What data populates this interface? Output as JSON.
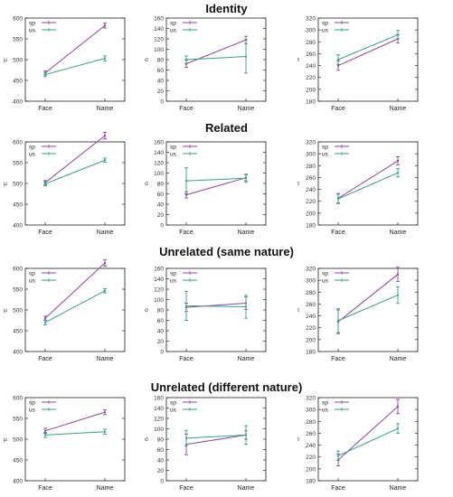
{
  "colors": {
    "sp": "#9b3fa8",
    "us": "#2aa68a",
    "axis": "#222222",
    "grid": "#e6e6e6"
  },
  "rows": [
    {
      "title": "Identity"
    },
    {
      "title": "Related"
    },
    {
      "title": "Unrelated (same nature)"
    },
    {
      "title": "Unrelated (different nature)"
    }
  ],
  "chart_data": [
    {
      "type": "line",
      "row": 0,
      "col": 0,
      "ylabel": "μ",
      "categories": [
        "Face",
        "Name"
      ],
      "ylim": [
        400,
        600
      ],
      "yticks": [
        400,
        450,
        500,
        550,
        600
      ],
      "legend": "top-left",
      "series": [
        {
          "name": "sp",
          "values": [
            468,
            582
          ],
          "errors": [
            5,
            6
          ]
        },
        {
          "name": "us",
          "values": [
            464,
            503
          ],
          "errors": [
            5,
            6
          ]
        }
      ]
    },
    {
      "type": "line",
      "row": 0,
      "col": 1,
      "ylabel": "σ",
      "categories": [
        "Face",
        "Name"
      ],
      "ylim": [
        0,
        160
      ],
      "yticks": [
        0,
        20,
        40,
        60,
        80,
        100,
        120,
        140,
        160
      ],
      "legend": "top-left",
      "series": [
        {
          "name": "sp",
          "values": [
            72,
            118
          ],
          "errors": [
            7,
            7
          ]
        },
        {
          "name": "us",
          "values": [
            80,
            86
          ],
          "errors": [
            7,
            32
          ]
        }
      ]
    },
    {
      "type": "line",
      "row": 0,
      "col": 2,
      "ylabel": "τ",
      "categories": [
        "Face",
        "Name"
      ],
      "ylim": [
        180,
        320
      ],
      "yticks": [
        180,
        200,
        220,
        240,
        260,
        280,
        300,
        320
      ],
      "legend": "top-left",
      "series": [
        {
          "name": "sp",
          "values": [
            240,
            285
          ],
          "errors": [
            8,
            7
          ]
        },
        {
          "name": "us",
          "values": [
            250,
            292
          ],
          "errors": [
            8,
            7
          ]
        }
      ]
    },
    {
      "type": "line",
      "row": 1,
      "col": 0,
      "ylabel": "μ",
      "categories": [
        "Face",
        "Name"
      ],
      "ylim": [
        400,
        600
      ],
      "yticks": [
        400,
        450,
        500,
        550,
        600
      ],
      "legend": "top-left",
      "series": [
        {
          "name": "sp",
          "values": [
            502,
            615
          ],
          "errors": [
            5,
            8
          ]
        },
        {
          "name": "us",
          "values": [
            499,
            556
          ],
          "errors": [
            5,
            5
          ]
        }
      ]
    },
    {
      "type": "line",
      "row": 1,
      "col": 1,
      "ylabel": "σ",
      "categories": [
        "Face",
        "Name"
      ],
      "ylim": [
        0,
        160
      ],
      "yticks": [
        0,
        20,
        40,
        60,
        80,
        100,
        120,
        140,
        160
      ],
      "legend": "top-left",
      "series": [
        {
          "name": "sp",
          "values": [
            58,
            91
          ],
          "errors": [
            6,
            6
          ]
        },
        {
          "name": "us",
          "values": [
            85,
            90
          ],
          "errors": [
            25,
            8
          ]
        }
      ]
    },
    {
      "type": "line",
      "row": 1,
      "col": 2,
      "ylabel": "τ",
      "categories": [
        "Face",
        "Name"
      ],
      "ylim": [
        180,
        320
      ],
      "yticks": [
        180,
        200,
        220,
        240,
        260,
        280,
        300,
        320
      ],
      "legend": "top-left",
      "series": [
        {
          "name": "sp",
          "values": [
            225,
            288
          ],
          "errors": [
            8,
            7
          ]
        },
        {
          "name": "us",
          "values": [
            224,
            268
          ],
          "errors": [
            8,
            7
          ]
        }
      ]
    },
    {
      "type": "line",
      "row": 2,
      "col": 0,
      "ylabel": "μ",
      "categories": [
        "Face",
        "Name"
      ],
      "ylim": [
        400,
        600
      ],
      "yticks": [
        400,
        450,
        500,
        550,
        600
      ],
      "legend": "top-left",
      "series": [
        {
          "name": "sp",
          "values": [
            480,
            613
          ],
          "errors": [
            5,
            8
          ]
        },
        {
          "name": "us",
          "values": [
            470,
            546
          ],
          "errors": [
            6,
            5
          ]
        }
      ]
    },
    {
      "type": "line",
      "row": 2,
      "col": 1,
      "ylabel": "σ",
      "categories": [
        "Face",
        "Name"
      ],
      "ylim": [
        0,
        160
      ],
      "yticks": [
        0,
        20,
        40,
        60,
        80,
        100,
        120,
        140,
        160
      ],
      "legend": "top-left",
      "series": [
        {
          "name": "sp",
          "values": [
            85,
            93
          ],
          "errors": [
            8,
            12
          ]
        },
        {
          "name": "us",
          "values": [
            88,
            86
          ],
          "errors": [
            28,
            22
          ]
        }
      ]
    },
    {
      "type": "line",
      "row": 2,
      "col": 2,
      "ylabel": "τ",
      "categories": [
        "Face",
        "Name"
      ],
      "ylim": [
        180,
        320
      ],
      "yticks": [
        180,
        200,
        220,
        240,
        260,
        280,
        300,
        320
      ],
      "legend": "top-left",
      "series": [
        {
          "name": "sp",
          "values": [
            230,
            310
          ],
          "errors": [
            20,
            12
          ]
        },
        {
          "name": "us",
          "values": [
            232,
            275
          ],
          "errors": [
            20,
            14
          ]
        }
      ]
    },
    {
      "type": "line",
      "row": 3,
      "col": 0,
      "ylabel": "μ",
      "categories": [
        "Face",
        "Name"
      ],
      "ylim": [
        400,
        600
      ],
      "yticks": [
        400,
        450,
        500,
        550,
        600
      ],
      "legend": "top-left",
      "series": [
        {
          "name": "sp",
          "values": [
            520,
            565
          ],
          "errors": [
            6,
            6
          ]
        },
        {
          "name": "us",
          "values": [
            510,
            518
          ],
          "errors": [
            6,
            6
          ]
        }
      ]
    },
    {
      "type": "line",
      "row": 3,
      "col": 1,
      "ylabel": "σ",
      "categories": [
        "Face",
        "Name"
      ],
      "ylim": [
        0,
        160
      ],
      "yticks": [
        0,
        20,
        40,
        60,
        80,
        100,
        120,
        140,
        160
      ],
      "legend": "top-left",
      "series": [
        {
          "name": "sp",
          "values": [
            70,
            88
          ],
          "errors": [
            20,
            8
          ]
        },
        {
          "name": "us",
          "values": [
            82,
            88
          ],
          "errors": [
            15,
            18
          ]
        }
      ]
    },
    {
      "type": "line",
      "row": 3,
      "col": 2,
      "ylabel": "τ",
      "categories": [
        "Face",
        "Name"
      ],
      "ylim": [
        180,
        320
      ],
      "yticks": [
        180,
        200,
        220,
        240,
        260,
        280,
        300,
        320
      ],
      "legend": "top-left",
      "series": [
        {
          "name": "sp",
          "values": [
            215,
            305
          ],
          "errors": [
            10,
            12
          ]
        },
        {
          "name": "us",
          "values": [
            222,
            268
          ],
          "errors": [
            8,
            8
          ]
        }
      ]
    }
  ]
}
